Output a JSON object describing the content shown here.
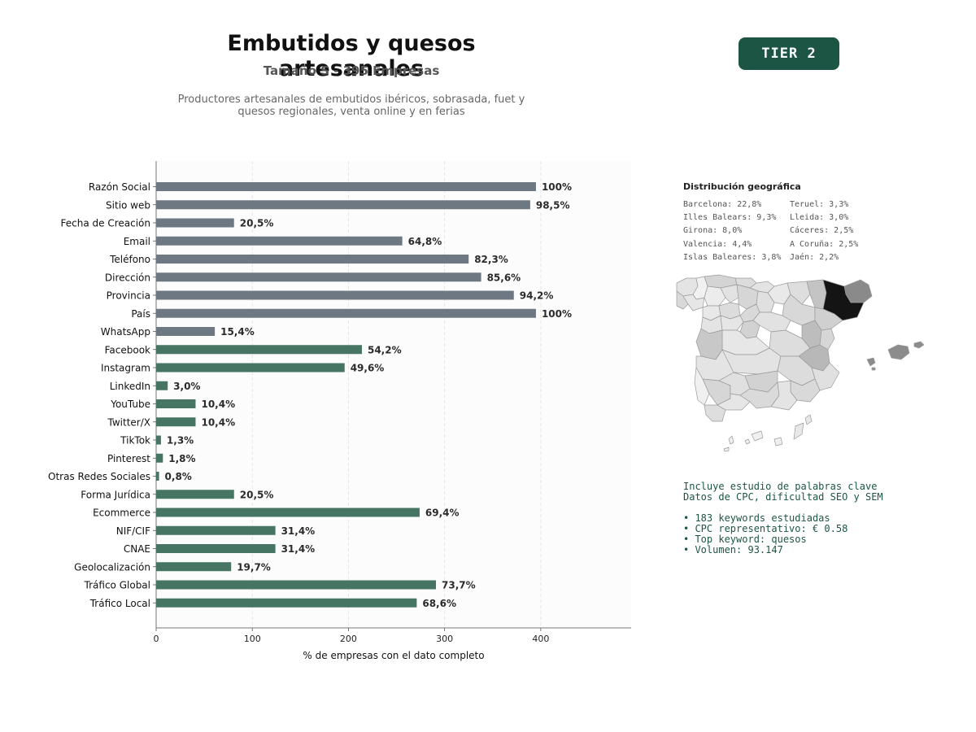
{
  "header": {
    "title": "Embutidos y quesos artesanales",
    "subtitle": "Tamaño S - 395 Empresas",
    "description_lines": [
      "Productores artesanales de embutidos ibéricos, sobrasada, fuet y",
      "quesos regionales, venta online y en ferias"
    ],
    "badge": "TIER 2"
  },
  "colors": {
    "badge_bg": "#1d5544",
    "bar_gray": "#6e7882",
    "bar_green": "#467563",
    "text_green": "#1d5544"
  },
  "chart_data": {
    "type": "bar",
    "orientation": "horizontal",
    "categories": [
      "Razón Social",
      "Sitio web",
      "Fecha de Creación",
      "Email",
      "Teléfono",
      "Dirección",
      "Provincia",
      "País",
      "WhatsApp",
      "Facebook",
      "Instagram",
      "LinkedIn",
      "YouTube",
      "Twitter/X",
      "TikTok",
      "Pinterest",
      "Otras Redes Sociales",
      "Forma Jurídica",
      "Ecommerce",
      "NIF/CIF",
      "CNAE",
      "Geolocalización",
      "Tráfico Global",
      "Tráfico Local"
    ],
    "values": [
      395,
      389,
      81,
      256,
      325,
      338,
      372,
      395,
      61,
      214,
      196,
      12,
      41,
      41,
      5,
      7,
      3,
      81,
      274,
      124,
      124,
      78,
      291,
      271
    ],
    "labels": [
      "100%",
      "98,5%",
      "20,5%",
      "64,8%",
      "82,3%",
      "85,6%",
      "94,2%",
      "100%",
      "15,4%",
      "54,2%",
      "49,6%",
      "3,0%",
      "10,4%",
      "10,4%",
      "1,3%",
      "1,8%",
      "0,8%",
      "20,5%",
      "69,4%",
      "31,4%",
      "31,4%",
      "19,7%",
      "73,7%",
      "68,6%"
    ],
    "bar_colors": [
      "gray",
      "gray",
      "gray",
      "gray",
      "gray",
      "gray",
      "gray",
      "gray",
      "gray",
      "green",
      "green",
      "green",
      "green",
      "green",
      "green",
      "green",
      "green",
      "green",
      "green",
      "green",
      "green",
      "green",
      "green",
      "green"
    ],
    "xlabel": "% de empresas con el dato completo",
    "ylabel": "",
    "xlim": [
      0,
      494
    ],
    "xticks": [
      0,
      100,
      200,
      300,
      400
    ],
    "grid": "vertical-dashed"
  },
  "geo": {
    "title": "Distribución geográfica",
    "col1": [
      "Barcelona: 22,8%",
      "Illes Balears: 9,3%",
      "Girona: 8,0%",
      "Valencia: 4,4%",
      "Islas Baleares: 3,8%"
    ],
    "col2": [
      "Teruel: 3,3%",
      "Lleida: 3,0%",
      "Cáceres: 2,5%",
      "A Coruña: 2,5%",
      "Jaén: 2,2%"
    ]
  },
  "keywords": {
    "lines": [
      "Incluye estudio de palabras clave",
      "Datos de CPC, dificultad SEO y SEM"
    ],
    "bullets": [
      "• 183 keywords estudiadas",
      "• CPC representativo: € 0.58",
      "• Top keyword: quesos",
      "• Volumen: 93.147"
    ]
  }
}
